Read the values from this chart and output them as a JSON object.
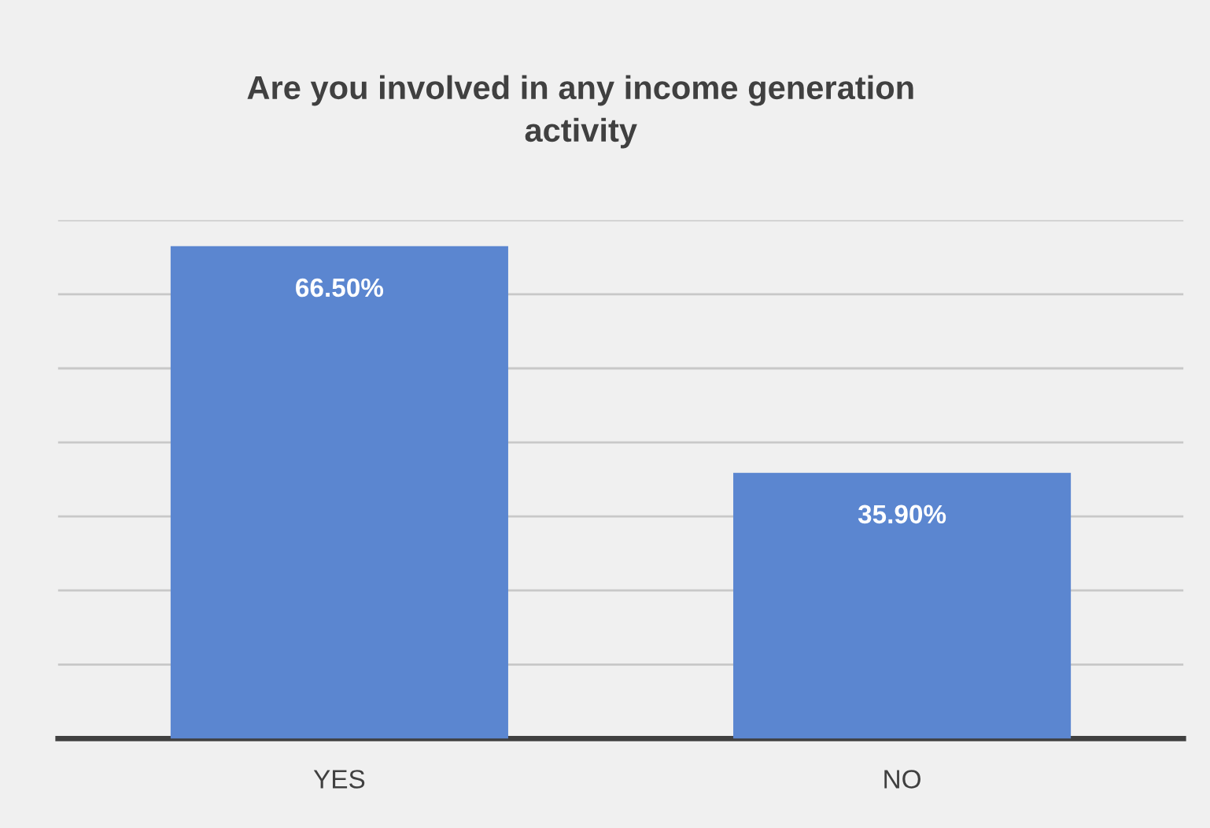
{
  "chart_data": {
    "type": "bar",
    "title": "Are you involved in any income generation\nactivity",
    "categories": [
      "YES",
      "NO"
    ],
    "values": [
      66.5,
      35.9
    ],
    "color": "#5b86d0",
    "value_labels": [
      "66.50%",
      "35.90%"
    ],
    "ylim": [
      0,
      70
    ],
    "yticks": [
      {
        "value": 0,
        "label": null
      },
      {
        "value": 10,
        "label": null
      },
      {
        "value": 20,
        "label": null
      },
      {
        "value": 30,
        "label": null
      },
      {
        "value": 40,
        "label": null
      },
      {
        "value": 50,
        "label": null
      },
      {
        "value": 60,
        "label": null
      },
      {
        "value": 70,
        "label": null
      }
    ],
    "tick_labels": "x",
    "grid": "y",
    "legend": false
  }
}
